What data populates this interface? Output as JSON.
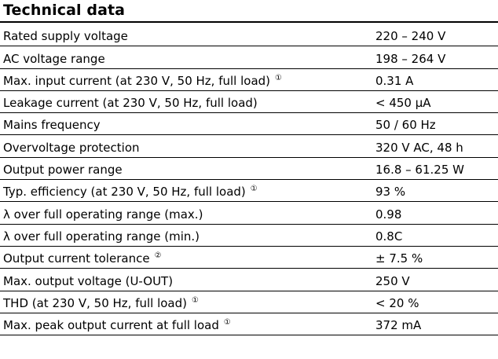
{
  "title": "Technical data",
  "rows": [
    {
      "label": "Rated supply voltage",
      "value": "220 – 240 V",
      "footnote": ""
    },
    {
      "label": "AC voltage range",
      "value": "198 – 264 V",
      "footnote": ""
    },
    {
      "label": "Max. input current (at 230 V, 50 Hz, full load)",
      "value": "0.31 A",
      "footnote": "①"
    },
    {
      "label": "Leakage current (at 230 V, 50 Hz, full load)",
      "value": "< 450 µA",
      "footnote": ""
    },
    {
      "label": "Mains frequency",
      "value": "50 / 60 Hz",
      "footnote": ""
    },
    {
      "label": "Overvoltage protection",
      "value": "320 V AC, 48 h",
      "footnote": ""
    },
    {
      "label": "Output power range",
      "value": "16.8 – 61.25 W",
      "footnote": ""
    },
    {
      "label": "Typ. efficiency (at 230 V, 50 Hz, full load)",
      "value": "93 %",
      "footnote": "①"
    },
    {
      "label": "λ over full operating range (max.)",
      "value": "0.98",
      "footnote": ""
    },
    {
      "label": "λ over full operating range (min.)",
      "value": "0.8C",
      "footnote": ""
    },
    {
      "label": "Output current tolerance",
      "value": "± 7.5 %",
      "footnote": "②"
    },
    {
      "label": "Max. output voltage (U-OUT)",
      "value": "250 V",
      "footnote": ""
    },
    {
      "label": "THD (at 230 V, 50 Hz, full load)",
      "value": "< 20 %",
      "footnote": "①"
    },
    {
      "label": "Max. peak output current at full load",
      "value": "372 mA",
      "footnote": "①"
    }
  ]
}
